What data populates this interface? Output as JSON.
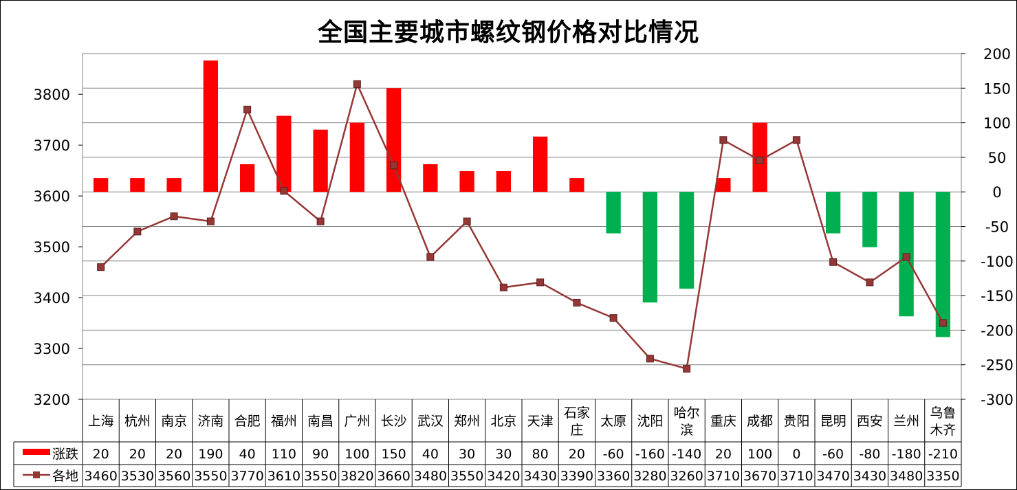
{
  "chart_data": {
    "type": "bar",
    "title": "全国主要城市螺纹钢价格对比情况",
    "categories": [
      [
        "上海"
      ],
      [
        "杭州"
      ],
      [
        "南京"
      ],
      [
        "济南"
      ],
      [
        "合肥"
      ],
      [
        "福州"
      ],
      [
        "南昌"
      ],
      [
        "广州"
      ],
      [
        "长沙"
      ],
      [
        "武汉"
      ],
      [
        "郑州"
      ],
      [
        "北京"
      ],
      [
        "天津"
      ],
      [
        "石家",
        "庄"
      ],
      [
        "太原"
      ],
      [
        "沈阳"
      ],
      [
        "哈尔",
        "滨"
      ],
      [
        "重庆"
      ],
      [
        "成都"
      ],
      [
        "贵阳"
      ],
      [
        "昆明"
      ],
      [
        "西安"
      ],
      [
        "兰州"
      ],
      [
        "乌鲁",
        "木齐"
      ]
    ],
    "series": [
      {
        "name": "涨跌",
        "type": "bar",
        "axis": "right",
        "values": [
          20,
          20,
          20,
          190,
          40,
          110,
          90,
          100,
          150,
          40,
          30,
          30,
          80,
          20,
          -60,
          -160,
          -140,
          20,
          100,
          0,
          -60,
          -80,
          -180,
          -210
        ]
      },
      {
        "name": "各地",
        "type": "line",
        "axis": "left",
        "values": [
          3460,
          3530,
          3560,
          3550,
          3770,
          3610,
          3550,
          3820,
          3660,
          3480,
          3550,
          3420,
          3430,
          3390,
          3360,
          3280,
          3260,
          3710,
          3670,
          3710,
          3470,
          3430,
          3480,
          3350
        ]
      }
    ],
    "y_left": {
      "lim": [
        3200,
        3880
      ],
      "ticks": [
        3200,
        3300,
        3400,
        3500,
        3600,
        3700,
        3800
      ]
    },
    "y_right": {
      "lim": [
        -300,
        200
      ],
      "ticks": [
        -300,
        -250,
        -200,
        -150,
        -100,
        -50,
        0,
        50,
        100,
        150,
        200
      ]
    },
    "grid": true,
    "legend": "data-table-left",
    "colors": {
      "up": "#ff0000",
      "down": "#00b050",
      "line": "#953735",
      "grid": "#808080"
    }
  }
}
